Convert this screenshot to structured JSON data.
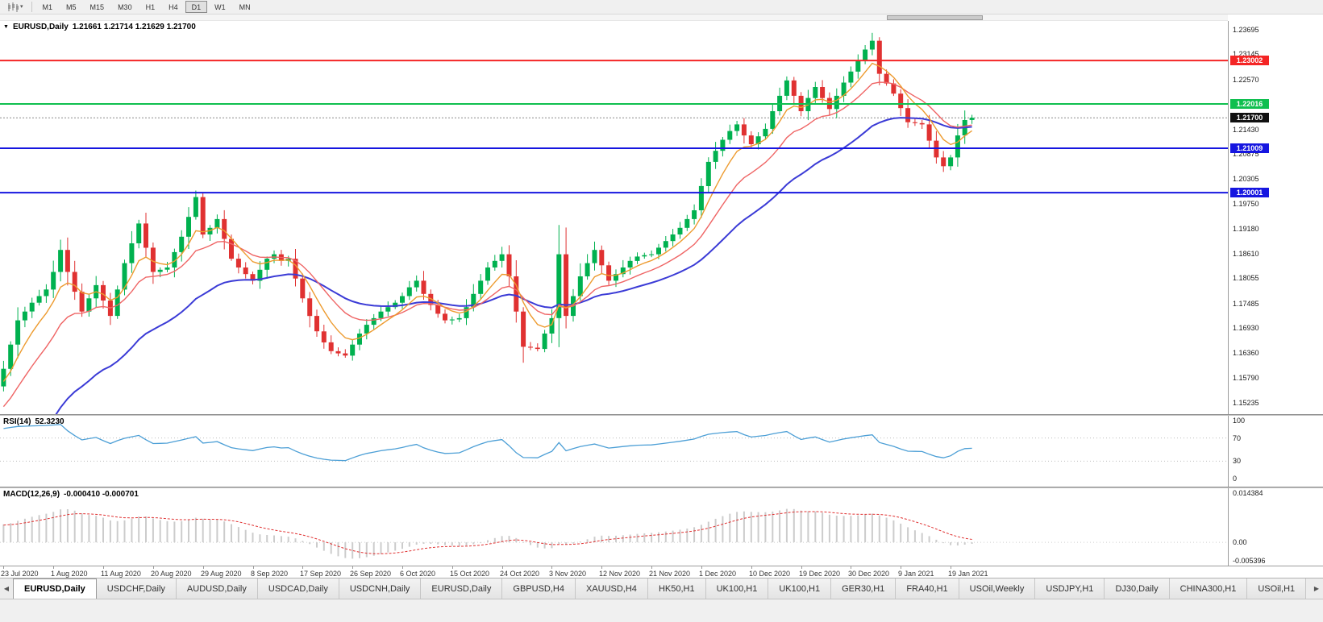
{
  "toolbar": {
    "timeframes": [
      "M1",
      "M5",
      "M15",
      "M30",
      "H1",
      "H4",
      "D1",
      "W1",
      "MN"
    ],
    "active_timeframe": "D1"
  },
  "main_chart": {
    "dropdown_glyph": "▼",
    "title": "EURUSD,Daily",
    "ohlc": "1.21661 1.21714 1.21629 1.21700",
    "y_range": [
      1.1497,
      1.239
    ],
    "axis_ticks": [
      "1.23695",
      "1.23145",
      "1.22570",
      "1.21430",
      "1.20875",
      "1.20305",
      "1.19750",
      "1.19180",
      "1.18610",
      "1.18055",
      "1.17485",
      "1.16930",
      "1.16360",
      "1.15790",
      "1.15235"
    ],
    "levels": [
      {
        "value": 1.23002,
        "label": "1.23002",
        "color": "#f42525"
      },
      {
        "value": 1.22016,
        "label": "1.22016",
        "color": "#0fbf4f"
      },
      {
        "value": 1.21009,
        "label": "1.21009",
        "color": "#1616e0"
      },
      {
        "value": 1.20001,
        "label": "1.20001",
        "color": "#1616e0"
      }
    ],
    "current_price": {
      "value": 1.217,
      "label": "1.21700",
      "badge_color": "#111111"
    },
    "colors": {
      "up": "#00b14f",
      "down": "#e03131",
      "ma_fast": "#ed9b2f",
      "ma_mid": "#ef6565",
      "ma_slow": "#3b3bd6"
    }
  },
  "rsi_panel": {
    "name": "RSI(14)",
    "value": "52.3230",
    "axis_ticks": [
      "100",
      "70",
      "30",
      "0"
    ],
    "guide_levels": [
      70,
      30
    ],
    "line_color": "#4c9fd6"
  },
  "macd_panel": {
    "name": "MACD(12,26,9)",
    "values": "-0.000410 -0.000701",
    "axis_ticks": [
      "0.014384",
      "0.00",
      "-0.005396"
    ],
    "y_range": [
      -0.005396,
      0.014384
    ],
    "histogram_color": "#cccccc",
    "signal_color": "#e03131"
  },
  "chart_data": {
    "type": "candlestick",
    "symbol": "EURUSD",
    "timeframe": "Daily",
    "label_every": 7,
    "x_labels": [
      "23 Jul 2020",
      "1 Aug 2020",
      "11 Aug 2020",
      "20 Aug 2020",
      "29 Aug 2020",
      "8 Sep 2020",
      "17 Sep 2020",
      "26 Sep 2020",
      "6 Oct 2020",
      "15 Oct 2020",
      "24 Oct 2020",
      "3 Nov 2020",
      "12 Nov 2020",
      "21 Nov 2020",
      "1 Dec 2020",
      "10 Dec 2020",
      "19 Dec 2020",
      "30 Dec 2020",
      "9 Jan 2021",
      "19 Jan 2021"
    ],
    "closes": [
      1.16,
      1.1655,
      1.171,
      1.173,
      1.175,
      1.1765,
      1.178,
      1.182,
      1.187,
      1.182,
      1.1775,
      1.173,
      1.176,
      1.179,
      1.1755,
      1.172,
      1.178,
      1.184,
      1.1885,
      1.193,
      1.1875,
      1.182,
      1.1825,
      1.183,
      1.1865,
      1.19,
      1.1945,
      1.199,
      1.1905,
      1.192,
      1.194,
      1.1895,
      1.185,
      1.183,
      1.1815,
      1.18,
      1.1825,
      1.185,
      1.186,
      1.1845,
      1.185,
      1.1805,
      1.176,
      1.172,
      1.1685,
      1.166,
      1.164,
      1.1635,
      1.163,
      1.1655,
      1.168,
      1.17,
      1.1715,
      1.173,
      1.174,
      1.175,
      1.1765,
      1.1785,
      1.18,
      1.177,
      1.1745,
      1.1725,
      1.171,
      1.1712,
      1.1715,
      1.174,
      1.177,
      1.18,
      1.183,
      1.1845,
      1.186,
      1.181,
      1.173,
      1.165,
      1.1648,
      1.1645,
      1.168,
      1.1715,
      1.186,
      1.172,
      1.1765,
      1.181,
      1.184,
      1.187,
      1.1835,
      1.18,
      1.1815,
      1.183,
      1.1845,
      1.1855,
      1.1858,
      1.186,
      1.1875,
      1.189,
      1.1905,
      1.192,
      1.194,
      1.196,
      1.2015,
      1.207,
      1.2095,
      1.212,
      1.214,
      1.2155,
      1.213,
      1.211,
      1.2128,
      1.2145,
      1.2185,
      1.222,
      1.2255,
      1.222,
      1.2185,
      1.2215,
      1.224,
      1.2215,
      1.219,
      1.222,
      1.225,
      1.2275,
      1.23,
      1.2325,
      1.2345,
      1.227,
      1.2248,
      1.2225,
      1.2192,
      1.216,
      1.2158,
      1.2155,
      1.2118,
      1.208,
      1.206,
      1.208,
      1.213,
      1.2165,
      1.217
    ],
    "horizontal_levels": [
      1.23002,
      1.22016,
      1.21009,
      1.20001
    ],
    "current_price": 1.217,
    "ohlc_readout": [
      1.21661,
      1.21714,
      1.21629,
      1.217
    ],
    "rsi_current": 52.323,
    "macd_current": [
      -0.00041,
      -0.000701
    ]
  },
  "tabs": {
    "scroll_left": "◀",
    "scroll_right": "▶",
    "items": [
      "EURUSD,Daily",
      "USDCHF,Daily",
      "AUDUSD,Daily",
      "USDCAD,Daily",
      "USDCNH,Daily",
      "EURUSD,Daily",
      "GBPUSD,H4",
      "XAUUSD,H4",
      "HK50,H1",
      "UK100,H1",
      "UK100,H1",
      "GER30,H1",
      "FRA40,H1",
      "USOil,Weekly",
      "USDJPY,H1",
      "DJ30,Daily",
      "CHINA300,H1",
      "USOil,H1"
    ],
    "active_index": 0
  }
}
